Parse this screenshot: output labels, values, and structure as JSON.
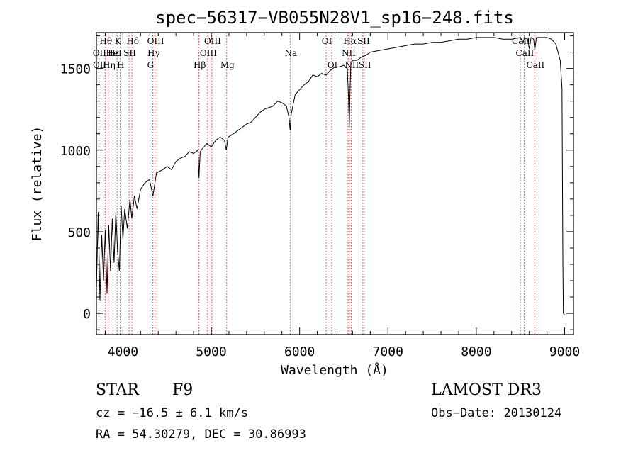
{
  "chart_data": {
    "type": "line",
    "title": "spec−56317−VB055N28V1_sp16−248.fits",
    "xlabel": "Wavelength (Å)",
    "ylabel": "Flux (relative)",
    "xlim": [
      3700,
      9100
    ],
    "ylim": [
      -130,
      1720
    ],
    "xticks": [
      4000,
      5000,
      6000,
      7000,
      8000,
      9000
    ],
    "yticks": [
      0,
      500,
      1000,
      1500
    ],
    "series": [
      {
        "name": "spectrum",
        "points": [
          [
            3700,
            150
          ],
          [
            3720,
            620
          ],
          [
            3740,
            80
          ],
          [
            3760,
            480
          ],
          [
            3780,
            200
          ],
          [
            3800,
            510
          ],
          [
            3820,
            120
          ],
          [
            3840,
            540
          ],
          [
            3860,
            260
          ],
          [
            3880,
            580
          ],
          [
            3900,
            310
          ],
          [
            3920,
            620
          ],
          [
            3940,
            380
          ],
          [
            3960,
            260
          ],
          [
            3980,
            660
          ],
          [
            4000,
            450
          ],
          [
            4020,
            640
          ],
          [
            4050,
            520
          ],
          [
            4080,
            700
          ],
          [
            4100,
            580
          ],
          [
            4130,
            720
          ],
          [
            4160,
            640
          ],
          [
            4200,
            760
          ],
          [
            4250,
            800
          ],
          [
            4300,
            820
          ],
          [
            4340,
            720
          ],
          [
            4380,
            860
          ],
          [
            4450,
            880
          ],
          [
            4500,
            900
          ],
          [
            4550,
            880
          ],
          [
            4600,
            930
          ],
          [
            4650,
            950
          ],
          [
            4700,
            960
          ],
          [
            4750,
            990
          ],
          [
            4800,
            980
          ],
          [
            4850,
            1000
          ],
          [
            4861,
            830
          ],
          [
            4875,
            990
          ],
          [
            4900,
            1010
          ],
          [
            4950,
            1040
          ],
          [
            5000,
            1020
          ],
          [
            5050,
            1060
          ],
          [
            5100,
            1080
          ],
          [
            5150,
            1060
          ],
          [
            5170,
            1000
          ],
          [
            5190,
            1080
          ],
          [
            5250,
            1100
          ],
          [
            5300,
            1120
          ],
          [
            5350,
            1140
          ],
          [
            5400,
            1160
          ],
          [
            5450,
            1170
          ],
          [
            5500,
            1200
          ],
          [
            5550,
            1230
          ],
          [
            5600,
            1250
          ],
          [
            5650,
            1260
          ],
          [
            5700,
            1270
          ],
          [
            5750,
            1300
          ],
          [
            5800,
            1290
          ],
          [
            5850,
            1270
          ],
          [
            5880,
            1200
          ],
          [
            5893,
            1120
          ],
          [
            5905,
            1220
          ],
          [
            5950,
            1340
          ],
          [
            6000,
            1370
          ],
          [
            6050,
            1400
          ],
          [
            6100,
            1420
          ],
          [
            6150,
            1460
          ],
          [
            6200,
            1450
          ],
          [
            6250,
            1470
          ],
          [
            6300,
            1460
          ],
          [
            6350,
            1490
          ],
          [
            6400,
            1510
          ],
          [
            6450,
            1510
          ],
          [
            6500,
            1520
          ],
          [
            6540,
            1500
          ],
          [
            6555,
            1310
          ],
          [
            6563,
            1140
          ],
          [
            6570,
            1350
          ],
          [
            6580,
            1520
          ],
          [
            6600,
            1550
          ],
          [
            6650,
            1550
          ],
          [
            6700,
            1570
          ],
          [
            6750,
            1580
          ],
          [
            6800,
            1600
          ],
          [
            6900,
            1610
          ],
          [
            7000,
            1620
          ],
          [
            7100,
            1630
          ],
          [
            7200,
            1640
          ],
          [
            7300,
            1650
          ],
          [
            7400,
            1650
          ],
          [
            7500,
            1660
          ],
          [
            7600,
            1660
          ],
          [
            7700,
            1670
          ],
          [
            7800,
            1680
          ],
          [
            7900,
            1680
          ],
          [
            8000,
            1690
          ],
          [
            8100,
            1690
          ],
          [
            8200,
            1690
          ],
          [
            8300,
            1680
          ],
          [
            8400,
            1680
          ],
          [
            8500,
            1690
          ],
          [
            8530,
            1660
          ],
          [
            8545,
            1690
          ],
          [
            8580,
            1680
          ],
          [
            8600,
            1620
          ],
          [
            8620,
            1690
          ],
          [
            8650,
            1680
          ],
          [
            8662,
            1610
          ],
          [
            8680,
            1690
          ],
          [
            8750,
            1690
          ],
          [
            8800,
            1690
          ],
          [
            8850,
            1680
          ],
          [
            8900,
            1650
          ],
          [
            8950,
            1550
          ],
          [
            8970,
            1380
          ],
          [
            8980,
            330
          ],
          [
            8985,
            0
          ],
          [
            9000,
            -10
          ]
        ]
      }
    ],
    "lines": [
      {
        "name": "Hθ",
        "wl": 3798,
        "row": 0
      },
      {
        "name": "OII",
        "wl": 3727,
        "row": 1
      },
      {
        "name": "OII",
        "wl": 3729,
        "row": 2
      },
      {
        "name": "Hε",
        "wl": 3889,
        "row": 1
      },
      {
        "name": "Hη",
        "wl": 3835,
        "row": 2
      },
      {
        "name": "K",
        "wl": 3934,
        "row": 0
      },
      {
        "name": "Hδ",
        "wl": 4102,
        "row": 0
      },
      {
        "name": "HeI",
        "wl": 3889,
        "row": 1
      },
      {
        "name": "SII",
        "wl": 4069,
        "row": 1
      },
      {
        "name": "H",
        "wl": 3968,
        "row": 2
      },
      {
        "name": "OIII",
        "wl": 4363,
        "row": 0
      },
      {
        "name": "Hγ",
        "wl": 4340,
        "row": 1
      },
      {
        "name": "G",
        "wl": 4305,
        "row": 2
      },
      {
        "name": "OIII",
        "wl": 5007,
        "row": 0
      },
      {
        "name": "OIII",
        "wl": 4959,
        "row": 1
      },
      {
        "name": "Hβ",
        "wl": 4861,
        "row": 2
      },
      {
        "name": "Mg",
        "wl": 5175,
        "row": 2
      },
      {
        "name": "Na",
        "wl": 5893,
        "row": 1
      },
      {
        "name": "OI",
        "wl": 6300,
        "row": 0
      },
      {
        "name": "OI",
        "wl": 6364,
        "row": 2
      },
      {
        "name": "Hα",
        "wl": 6563,
        "row": 0
      },
      {
        "name": "SII",
        "wl": 6716,
        "row": 0
      },
      {
        "name": "NII",
        "wl": 6548,
        "row": 1
      },
      {
        "name": "NII",
        "wl": 6583,
        "row": 2
      },
      {
        "name": "SII",
        "wl": 6731,
        "row": 2
      },
      {
        "name": "CaII",
        "wl": 8498,
        "row": 0
      },
      {
        "name": "CaII",
        "wl": 8542,
        "row": 1
      },
      {
        "name": "CaII",
        "wl": 8662,
        "row": 2
      }
    ]
  },
  "info": {
    "object_class": "STAR",
    "subclass": "F9",
    "survey": "LAMOST DR3",
    "redshift": "cz = −16.5 ± 6.1 km/s",
    "obs_date": "Obs−Date: 20130124",
    "coords": "RA =  54.30279, DEC =  30.86993"
  }
}
